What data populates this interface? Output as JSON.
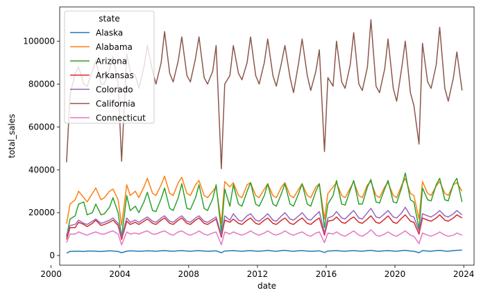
{
  "chart_data": {
    "type": "line",
    "title": "",
    "xlabel": "date",
    "ylabel": "total_sales",
    "xlim": [
      2000.5,
      2024.6
    ],
    "ylim": [
      -4500,
      116000
    ],
    "x_ticks": [
      2000,
      2004,
      2008,
      2012,
      2016,
      2020,
      2024
    ],
    "y_ticks": [
      0,
      20000,
      40000,
      60000,
      80000,
      100000
    ],
    "legend_title": "state",
    "legend_position": "top-left",
    "x": [
      2000.9,
      2001.1,
      2001.4,
      2001.6,
      2001.9,
      2002.1,
      2002.4,
      2002.6,
      2002.9,
      2003.1,
      2003.4,
      2003.6,
      2003.9,
      2004.1,
      2004.4,
      2004.6,
      2004.9,
      2005.1,
      2005.4,
      2005.6,
      2005.9,
      2006.1,
      2006.4,
      2006.6,
      2006.9,
      2007.1,
      2007.4,
      2007.6,
      2007.9,
      2008.1,
      2008.4,
      2008.6,
      2008.9,
      2009.1,
      2009.4,
      2009.6,
      2009.9,
      2010.1,
      2010.4,
      2010.6,
      2010.9,
      2011.1,
      2011.4,
      2011.6,
      2011.9,
      2012.1,
      2012.4,
      2012.6,
      2012.9,
      2013.1,
      2013.4,
      2013.6,
      2013.9,
      2014.1,
      2014.4,
      2014.6,
      2014.9,
      2015.1,
      2015.4,
      2015.6,
      2015.9,
      2016.1,
      2016.4,
      2016.6,
      2016.9,
      2017.1,
      2017.4,
      2017.6,
      2017.9,
      2018.1,
      2018.4,
      2018.6,
      2018.9,
      2019.1,
      2019.4,
      2019.6,
      2019.9,
      2020.1,
      2020.4,
      2020.6,
      2020.9,
      2021.1,
      2021.4,
      2021.6,
      2021.9,
      2022.1,
      2022.4,
      2022.6,
      2022.9,
      2023.1,
      2023.4,
      2023.6,
      2023.9
    ],
    "series": [
      {
        "name": "Alaska",
        "color": "#1f77b4",
        "values": [
          1200,
          1900,
          2000,
          2000,
          1900,
          2100,
          2100,
          2000,
          1900,
          2000,
          2200,
          2100,
          1900,
          1300,
          2000,
          2200,
          2100,
          2000,
          2100,
          2200,
          2100,
          2000,
          2200,
          2300,
          2100,
          2000,
          2200,
          2300,
          2100,
          2000,
          2200,
          2300,
          2100,
          2000,
          2100,
          2200,
          1300,
          2100,
          2200,
          2300,
          2100,
          2000,
          2200,
          2300,
          2100,
          2000,
          2200,
          2400,
          2100,
          2000,
          2300,
          2400,
          2100,
          2000,
          2200,
          2300,
          2100,
          2000,
          2100,
          2200,
          1400,
          2100,
          2200,
          2300,
          2100,
          2000,
          2200,
          2300,
          2100,
          2000,
          2300,
          2400,
          2100,
          2000,
          2200,
          2300,
          2100,
          2000,
          2300,
          2400,
          2100,
          2000,
          1300,
          2300,
          2100,
          2000,
          2300,
          2400,
          2100,
          2000,
          2300,
          2400,
          2500
        ]
      },
      {
        "name": "Alabama",
        "color": "#ff7f0e",
        "values": [
          14800,
          24000,
          26000,
          30000,
          27000,
          25000,
          29000,
          31500,
          26000,
          27000,
          30000,
          31000,
          26000,
          14000,
          33000,
          28000,
          30000,
          27000,
          32000,
          36000,
          29000,
          28000,
          33000,
          37000,
          29000,
          28000,
          34000,
          36500,
          29000,
          28000,
          33000,
          35000,
          28000,
          27000,
          30000,
          32000,
          15000,
          34500,
          32000,
          34000,
          28000,
          27000,
          33000,
          34000,
          28000,
          27000,
          31000,
          33500,
          28000,
          27000,
          32000,
          34000,
          28000,
          27000,
          31000,
          33500,
          28000,
          27000,
          32000,
          33500,
          17000,
          29000,
          32000,
          34000,
          28000,
          27000,
          31500,
          34500,
          28000,
          27000,
          33000,
          34500,
          28000,
          27000,
          32000,
          34000,
          28000,
          27000,
          33000,
          36000,
          29000,
          28000,
          17000,
          34500,
          29000,
          28000,
          32500,
          34500,
          29000,
          28000,
          33000,
          34000,
          30000
        ]
      },
      {
        "name": "Arizona",
        "color": "#2ca02c",
        "values": [
          8700,
          17000,
          18500,
          24000,
          25000,
          19000,
          20000,
          24000,
          19000,
          19500,
          22500,
          27000,
          20000,
          8500,
          28000,
          21000,
          23000,
          20000,
          25000,
          29500,
          21000,
          20500,
          26500,
          31500,
          22000,
          21000,
          27000,
          33500,
          22000,
          21500,
          27000,
          33000,
          22000,
          21000,
          26500,
          33000,
          11000,
          31000,
          23000,
          33000,
          24000,
          23000,
          30000,
          34000,
          24000,
          23000,
          28000,
          33500,
          24000,
          23000,
          29000,
          33500,
          24000,
          23000,
          29000,
          33500,
          24000,
          23000,
          30000,
          33500,
          13000,
          24000,
          28000,
          35000,
          24000,
          23500,
          30500,
          35000,
          24000,
          24000,
          32000,
          35500,
          25000,
          24500,
          31000,
          35000,
          25000,
          24500,
          32000,
          38500,
          26000,
          25000,
          12500,
          31500,
          26000,
          25500,
          33000,
          36000,
          26000,
          25500,
          33500,
          36000,
          25000
        ]
      },
      {
        "name": "Arkansas",
        "color": "#d62728",
        "values": [
          7500,
          13000,
          13000,
          15500,
          14500,
          13500,
          15000,
          16500,
          14000,
          14500,
          15500,
          16500,
          14000,
          7500,
          16000,
          14500,
          15500,
          14500,
          16000,
          17000,
          15000,
          14500,
          16500,
          17500,
          15000,
          14500,
          16500,
          17500,
          15000,
          14500,
          16500,
          17500,
          15000,
          14500,
          16000,
          17000,
          8500,
          16500,
          15500,
          17000,
          15000,
          14500,
          16500,
          17500,
          15000,
          14500,
          16500,
          17500,
          15000,
          14500,
          16500,
          17500,
          15000,
          14500,
          16500,
          17500,
          15000,
          14500,
          16500,
          17500,
          9500,
          16000,
          16500,
          18000,
          15500,
          15000,
          17000,
          18000,
          15500,
          15000,
          17000,
          18500,
          15500,
          15000,
          17000,
          18500,
          15500,
          15000,
          17500,
          19000,
          16000,
          15500,
          10000,
          17500,
          16500,
          16000,
          17500,
          19000,
          16500,
          16000,
          17500,
          19000,
          17500
        ]
      },
      {
        "name": "Colorado",
        "color": "#9467bd",
        "values": [
          9500,
          14000,
          14500,
          16500,
          15000,
          14500,
          16000,
          17000,
          15000,
          15500,
          16500,
          17500,
          15000,
          8500,
          17500,
          15500,
          16500,
          15500,
          17000,
          18000,
          16000,
          15500,
          17500,
          18500,
          16000,
          15500,
          17500,
          18500,
          16000,
          15500,
          17500,
          18500,
          16000,
          15500,
          17000,
          18000,
          9500,
          18500,
          16500,
          19500,
          16500,
          16000,
          18500,
          19500,
          16500,
          16000,
          18000,
          19500,
          16500,
          16000,
          18500,
          20000,
          17000,
          16500,
          18500,
          20000,
          17000,
          16500,
          19000,
          20500,
          10500,
          17500,
          18500,
          20500,
          17500,
          17000,
          19500,
          21000,
          17500,
          17000,
          20000,
          22000,
          18000,
          17500,
          19500,
          21000,
          18000,
          17500,
          20000,
          22500,
          18500,
          18000,
          11500,
          19500,
          18500,
          18000,
          19500,
          21000,
          18500,
          18000,
          19500,
          21000,
          19000
        ]
      },
      {
        "name": "California",
        "color": "#8c564b",
        "values": [
          43500,
          75000,
          85000,
          88000,
          80000,
          79000,
          86000,
          91000,
          80000,
          80000,
          87000,
          93000,
          80000,
          44000,
          94000,
          86000,
          84000,
          78000,
          88000,
          98000,
          86000,
          80000,
          90000,
          104500,
          85000,
          81000,
          91000,
          102000,
          84000,
          81000,
          92000,
          102000,
          83000,
          80000,
          86000,
          98000,
          40500,
          80000,
          84000,
          98000,
          85000,
          82000,
          90000,
          102000,
          84000,
          80000,
          90000,
          101000,
          84000,
          79000,
          90000,
          98000,
          83000,
          76000,
          90000,
          101000,
          84000,
          77000,
          86000,
          96000,
          48500,
          83000,
          79000,
          100000,
          81000,
          78000,
          89000,
          104000,
          80000,
          77000,
          88000,
          110000,
          79000,
          76000,
          87000,
          101000,
          78000,
          72000,
          88000,
          100000,
          76000,
          70000,
          52000,
          99000,
          81000,
          78000,
          89000,
          106500,
          78000,
          72000,
          83000,
          95000,
          77000
        ]
      },
      {
        "name": "Connecticut",
        "color": "#e377c2",
        "values": [
          6000,
          10000,
          10000,
          11000,
          10000,
          9500,
          10500,
          11000,
          10000,
          10000,
          11000,
          11500,
          10000,
          5000,
          11000,
          10000,
          10500,
          10000,
          11000,
          11500,
          10000,
          10000,
          11000,
          11500,
          10000,
          9500,
          11000,
          11500,
          10000,
          9500,
          10500,
          11500,
          10000,
          9500,
          10500,
          11000,
          5000,
          11000,
          10000,
          11000,
          10000,
          9500,
          10500,
          11500,
          10000,
          9500,
          10500,
          11500,
          10000,
          9500,
          10500,
          11500,
          10000,
          9500,
          10500,
          11000,
          9500,
          9000,
          10500,
          11000,
          6000,
          10500,
          10000,
          11000,
          9500,
          9000,
          10500,
          11500,
          9500,
          9000,
          10500,
          12000,
          9500,
          9000,
          10000,
          11000,
          9500,
          9000,
          10500,
          11500,
          9500,
          9000,
          5500,
          10500,
          9500,
          9000,
          10000,
          11000,
          9500,
          9000,
          9500,
          10500,
          9500
        ]
      }
    ]
  }
}
